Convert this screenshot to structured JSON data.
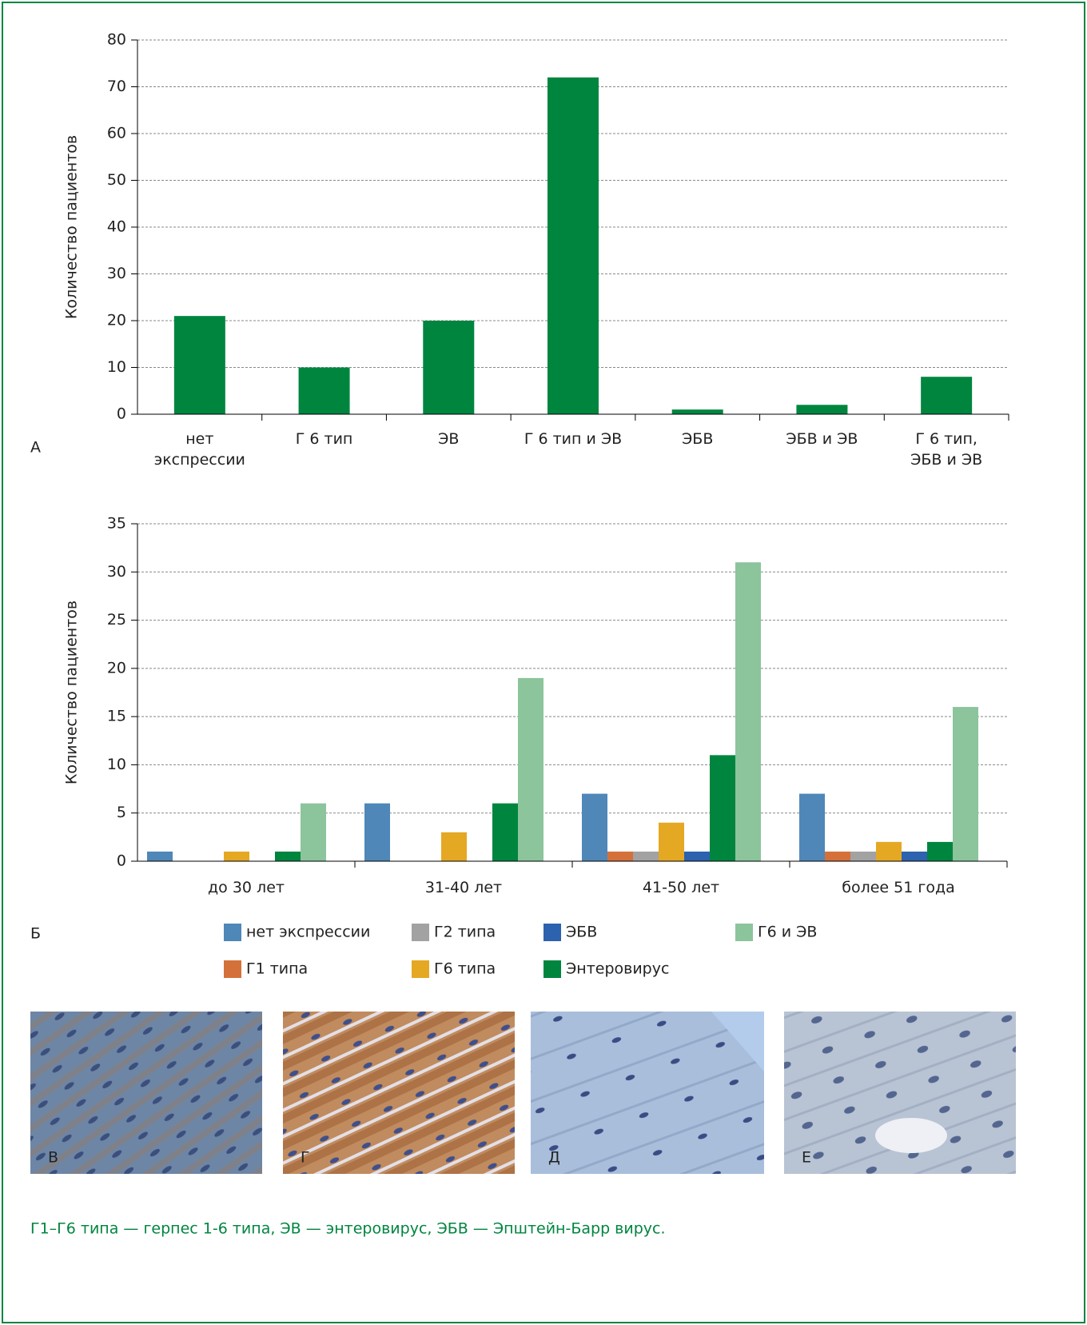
{
  "chart_data": [
    {
      "type": "bar",
      "panel_label": "А",
      "ylabel": "Количество пациентов",
      "categories": [
        "нет\nэкспрессии",
        "Г 6 тип",
        "ЭВ",
        "Г 6 тип и ЭВ",
        "ЭБВ",
        "ЭБВ и ЭВ",
        "Г 6 тип,\nЭБВ и ЭВ"
      ],
      "values": [
        21,
        10,
        20,
        72,
        1,
        2,
        8
      ],
      "color": "#00853f",
      "ylim": [
        0,
        80
      ],
      "yticks": [
        0,
        10,
        20,
        30,
        40,
        50,
        60,
        70,
        80
      ],
      "grid": true
    },
    {
      "type": "bar",
      "panel_label": "Б",
      "ylabel": "Количество пациентов",
      "categories": [
        "до 30 лет",
        "31-40 лет",
        "41-50 лет",
        "более 51 года"
      ],
      "series": [
        {
          "name": "нет экспрессии",
          "color": "#4f87b9",
          "values": [
            1,
            6,
            7,
            7
          ]
        },
        {
          "name": "Г1 типа",
          "color": "#d4713a",
          "values": [
            0,
            0,
            1,
            1
          ]
        },
        {
          "name": "Г2 типа",
          "color": "#a2a2a2",
          "values": [
            0,
            0,
            1,
            1
          ]
        },
        {
          "name": "Г6 типа",
          "color": "#e5a823",
          "values": [
            1,
            3,
            4,
            2
          ]
        },
        {
          "name": "ЭБВ",
          "color": "#2c62ae",
          "values": [
            0,
            0,
            1,
            1
          ]
        },
        {
          "name": "Энтеровирус",
          "color": "#00853f",
          "values": [
            1,
            6,
            11,
            2
          ]
        },
        {
          "name": "Г6 и ЭВ",
          "color": "#8cc49c",
          "values": [
            6,
            19,
            31,
            16
          ]
        }
      ],
      "ylim": [
        0,
        35
      ],
      "yticks": [
        0,
        5,
        10,
        15,
        20,
        25,
        30,
        35
      ],
      "grid": true
    }
  ],
  "panels": [
    {
      "label": "В"
    },
    {
      "label": "Г"
    },
    {
      "label": "Д"
    },
    {
      "label": "Е"
    }
  ],
  "caption": "Г1–Г6 типа — герпес 1-6 типа, ЭВ — энтеровирус, ЭБВ — Эпштейн-Барр вирус."
}
